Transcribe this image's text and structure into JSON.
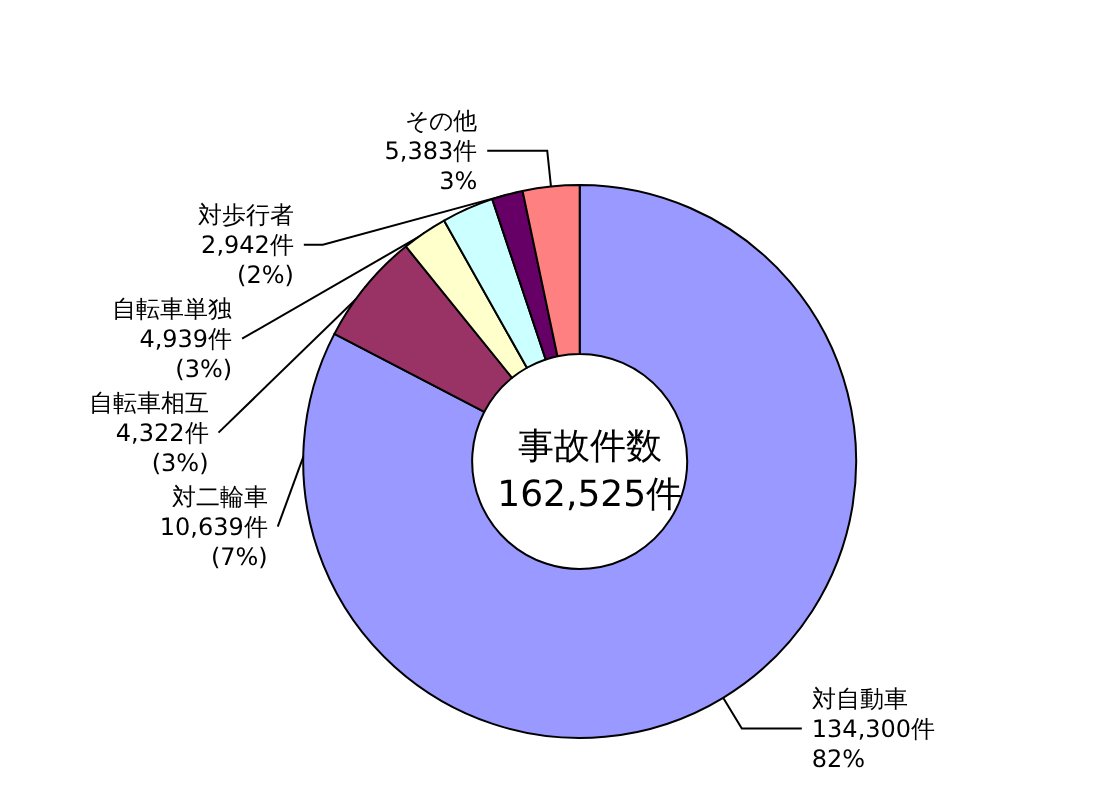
{
  "chart_data": {
    "type": "donut",
    "title": "事故件数\n162,525件",
    "categories": [
      "対自動車",
      "対二輪車",
      "自転車相互",
      "自転車単独",
      "対歩行者",
      "その他"
    ],
    "values": [
      134300,
      10639,
      4322,
      4939,
      2942,
      5383
    ],
    "colors": [
      "#9999ff",
      "#993366",
      "#ffffcc",
      "#ccffff",
      "#660066",
      "#ff8080"
    ],
    "value_labels": [
      "134,300件\n82%",
      "10,639件\n(7%)",
      "4,322件\n(3%)",
      "4,939件\n(3%)",
      "2,942件\n(2%)",
      "5,383件\n3%"
    ],
    "legend": false
  }
}
